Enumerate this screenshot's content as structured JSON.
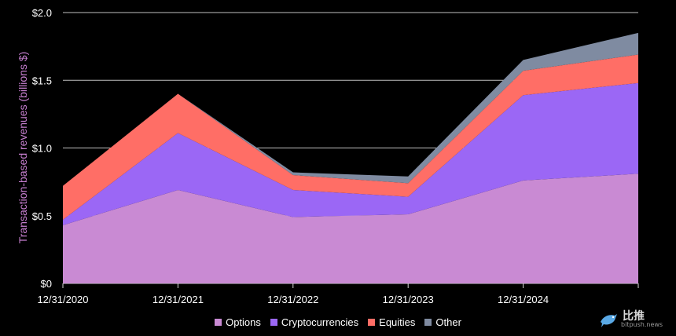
{
  "chart_data": {
    "type": "area",
    "stacked": true,
    "categories": [
      "12/31/2020",
      "12/31/2021",
      "12/31/2022",
      "12/31/2023",
      "12/31/2024",
      ""
    ],
    "series": [
      {
        "name": "Options",
        "color": "#c98ad3",
        "values": [
          0.43,
          0.69,
          0.49,
          0.51,
          0.76,
          0.81
        ]
      },
      {
        "name": "Cryptocurrencies",
        "color": "#9b67f5",
        "values": [
          0.04,
          0.42,
          0.2,
          0.13,
          0.63,
          0.67
        ]
      },
      {
        "name": "Equities",
        "color": "#ff6e66",
        "values": [
          0.25,
          0.29,
          0.11,
          0.1,
          0.18,
          0.21
        ]
      },
      {
        "name": "Other",
        "color": "#7f8ba1",
        "values": [
          0.0,
          0.0,
          0.02,
          0.05,
          0.08,
          0.16
        ]
      }
    ],
    "y_ticks": [
      "$0",
      "$0.5",
      "$1.0",
      "$1.5",
      "$2.0"
    ],
    "y_tick_values": [
      0,
      0.5,
      1.0,
      1.5,
      2.0
    ],
    "ylim": [
      0,
      2.0
    ],
    "xlabel": "",
    "ylabel": "Transaction-based revenues (billions $)",
    "grid": true,
    "legend_position": "bottom"
  },
  "watermark": {
    "text_cn": "比推",
    "text_en": "bitpush.news",
    "icon": "bird-icon"
  }
}
